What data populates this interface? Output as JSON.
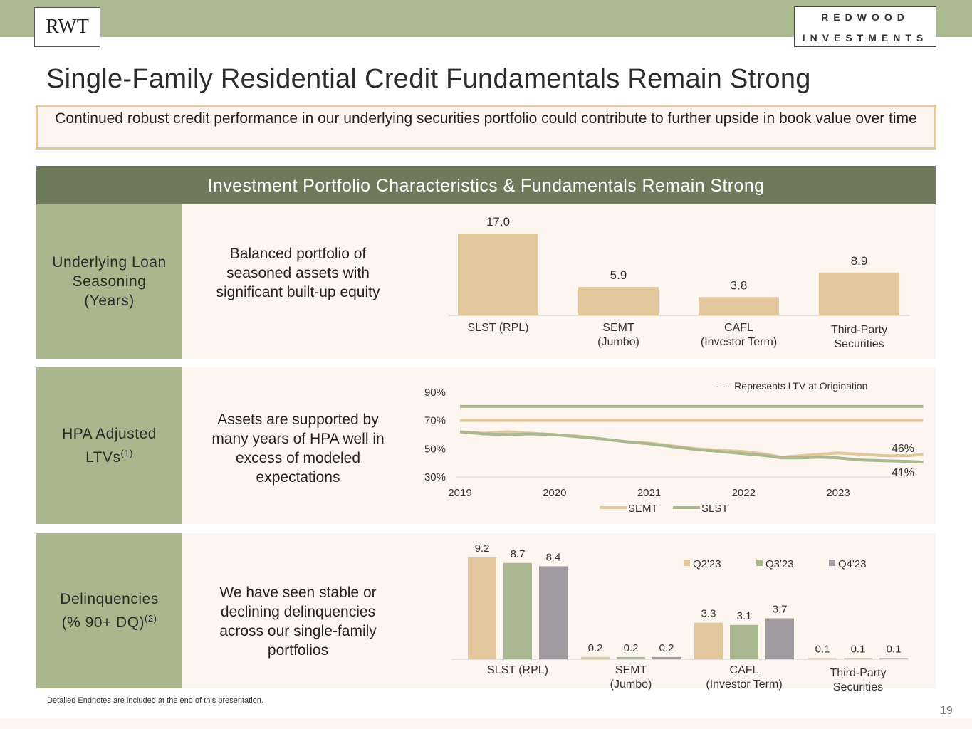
{
  "header": {
    "logo_left": "RWT",
    "logo_right_line1": "REDWOOD",
    "logo_right_line2": "INVESTMENTS"
  },
  "title": "Single-Family Residential Credit Fundamentals Remain Strong",
  "callout": "Continued robust credit performance in our underlying securities portfolio could contribute to further upside in book value over time",
  "section_header": "Investment Portfolio Characteristics & Fundamentals Remain Strong",
  "rows": [
    {
      "label": "Underlying Loan Seasoning (Years)",
      "description": "Balanced portfolio of seasoned assets with significant built-up equity"
    },
    {
      "label": "HPA Adjusted LTVs",
      "label_sup": "(1)",
      "description": "Assets are supported by many years of HPA well in excess of modeled expectations"
    },
    {
      "label": "Delinquencies (% 90+ DQ)",
      "label_sup": "(2)",
      "description": "We have seen stable or declining delinquencies across our single-family portfolios"
    }
  ],
  "colors": {
    "tan": "#e2c69c",
    "green": "#a9b88f",
    "grey": "#a09ba0"
  },
  "chart_data": [
    {
      "type": "bar",
      "categories": [
        "SLST (RPL)",
        "SEMT (Jumbo)",
        "CAFL (Investor Term)",
        "Third-Party Securities"
      ],
      "category_lines": [
        [
          "SLST (RPL)"
        ],
        [
          "SEMT",
          "(Jumbo)"
        ],
        [
          "CAFL",
          "(Investor Term)"
        ],
        [
          "Third-Party",
          "Securities"
        ]
      ],
      "values": [
        17.0,
        5.9,
        3.8,
        8.9
      ],
      "value_labels": [
        "17.0",
        "5.9",
        "3.8",
        "8.9"
      ],
      "ylim": [
        0,
        17
      ]
    },
    {
      "type": "line",
      "x_ticks": [
        "2019",
        "2020",
        "2021",
        "2022",
        "2023"
      ],
      "y_ticks": [
        "30%",
        "50%",
        "70%",
        "90%"
      ],
      "ylim": [
        30,
        90
      ],
      "xlim": [
        2019,
        2023.95
      ],
      "annotation": "- - - Represents LTV at Origination",
      "series": [
        {
          "name": "SEMT",
          "color": "#e2c69c",
          "origination": 70,
          "end_label": "46%",
          "x": [
            2019,
            2019.25,
            2019.5,
            2019.75,
            2020,
            2020.25,
            2020.5,
            2020.75,
            2021,
            2021.25,
            2021.5,
            2021.75,
            2022,
            2022.25,
            2022.4,
            2022.6,
            2022.8,
            2023,
            2023.25,
            2023.5,
            2023.75,
            2023.9
          ],
          "y": [
            62,
            61,
            62,
            61,
            60,
            59,
            57,
            55,
            54,
            52,
            50,
            49,
            48,
            46,
            44,
            45,
            46,
            47,
            46,
            45,
            45,
            46
          ]
        },
        {
          "name": "SLST",
          "color": "#a9b88f",
          "origination": 80,
          "end_label": "41%",
          "x": [
            2019,
            2019.25,
            2019.5,
            2019.75,
            2020,
            2020.25,
            2020.5,
            2020.75,
            2021,
            2021.25,
            2021.5,
            2021.75,
            2022,
            2022.25,
            2022.4,
            2022.6,
            2022.8,
            2023,
            2023.25,
            2023.5,
            2023.75,
            2023.9
          ],
          "y": [
            62,
            60.5,
            60,
            60.5,
            60,
            58.5,
            57,
            55,
            53.5,
            51.5,
            49.5,
            48,
            46.5,
            45,
            43.5,
            43.5,
            44,
            43.5,
            42,
            41.5,
            41,
            40.5
          ]
        }
      ]
    },
    {
      "type": "bar",
      "categories": [
        "SLST (RPL)",
        "SEMT (Jumbo)",
        "CAFL (Investor Term)",
        "Third-Party Securities"
      ],
      "category_lines": [
        [
          "SLST (RPL)"
        ],
        [
          "SEMT",
          "(Jumbo)"
        ],
        [
          "CAFL",
          "(Investor Term)"
        ],
        [
          "Third-Party",
          "Securities"
        ]
      ],
      "legend": "top-right",
      "series": [
        {
          "name": "Q2'23",
          "color": "#e2c69c",
          "values": [
            9.2,
            0.2,
            3.3,
            0.1
          ]
        },
        {
          "name": "Q3'23",
          "color": "#a9b88f",
          "values": [
            8.7,
            0.2,
            3.1,
            0.1
          ]
        },
        {
          "name": "Q4'23",
          "color": "#a09ba0",
          "values": [
            8.4,
            0.2,
            3.7,
            0.1
          ]
        }
      ]
    }
  ],
  "endnote": "Detailed Endnotes are included at the end of this presentation.",
  "page_number": "19"
}
